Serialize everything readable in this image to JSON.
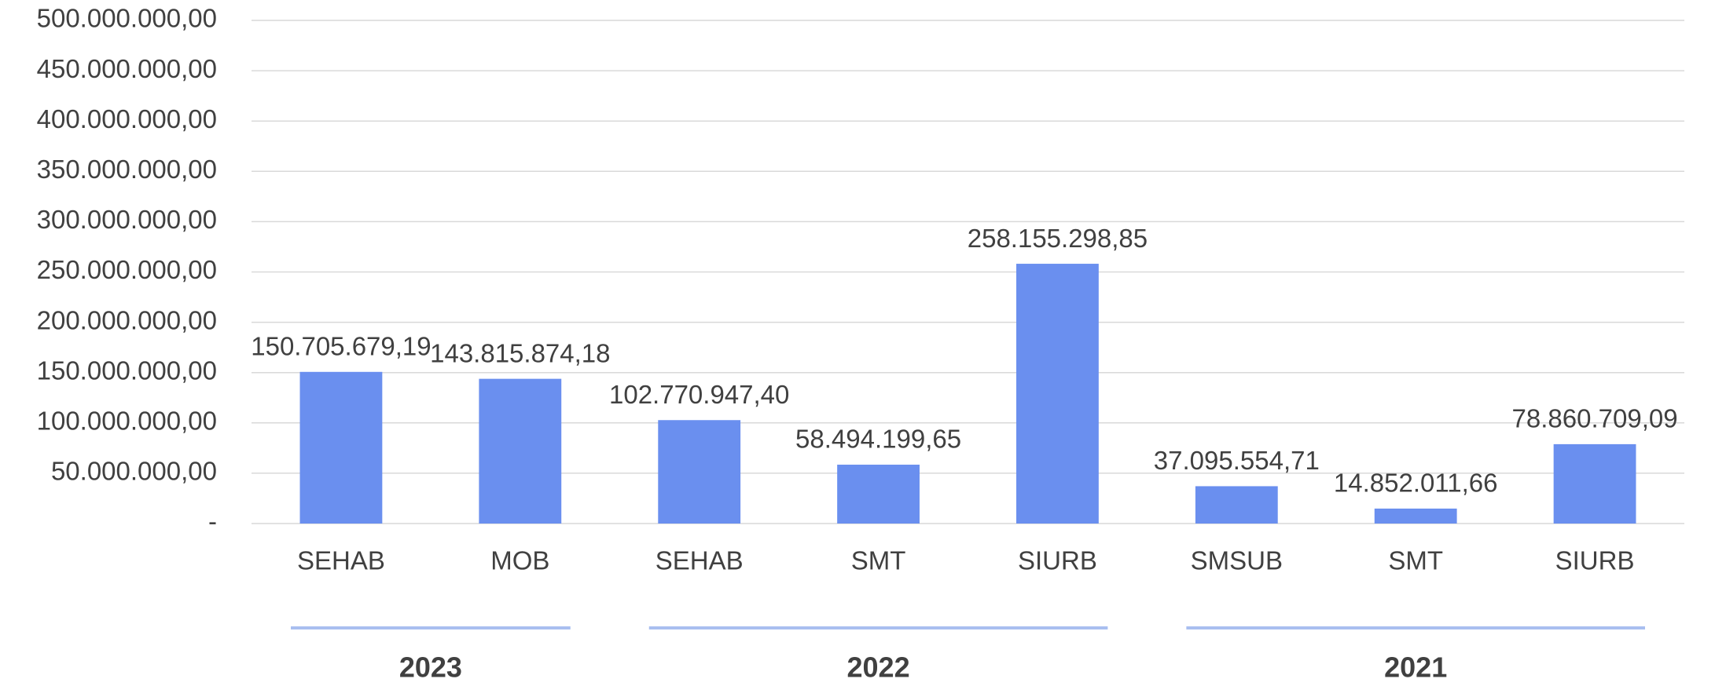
{
  "chart_data": {
    "type": "bar",
    "groups": [
      {
        "label": "2023",
        "categories": [
          "SEHAB",
          "MOB"
        ]
      },
      {
        "label": "2022",
        "categories": [
          "SEHAB",
          "SMT",
          "SIURB"
        ]
      },
      {
        "label": "2021",
        "categories": [
          "SMSUB",
          "SMT",
          "SIURB"
        ]
      }
    ],
    "values": [
      150705679.19,
      143815874.18,
      102770947.4,
      58494199.65,
      258155298.85,
      37095554.71,
      14852011.66,
      78860709.09
    ],
    "value_labels": [
      "150.705.679,19",
      "143.815.874,18",
      "102.770.947,40",
      "58.494.199,65",
      "258.155.298,85",
      "37.095.554,71",
      "14.852.011,66",
      "78.860.709,09"
    ],
    "color": "#6a8fef",
    "ylim": [
      0,
      500000000
    ],
    "yticks": [
      {
        "value": 0,
        "label": "-"
      },
      {
        "value": 50000000,
        "label": "50.000.000,00"
      },
      {
        "value": 100000000,
        "label": "100.000.000,00"
      },
      {
        "value": 150000000,
        "label": "150.000.000,00"
      },
      {
        "value": 200000000,
        "label": "200.000.000,00"
      },
      {
        "value": 250000000,
        "label": "250.000.000,00"
      },
      {
        "value": 300000000,
        "label": "300.000.000,00"
      },
      {
        "value": 350000000,
        "label": "350.000.000,00"
      },
      {
        "value": 400000000,
        "label": "400.000.000,00"
      },
      {
        "value": 450000000,
        "label": "450.000.000,00"
      },
      {
        "value": 500000000,
        "label": "500.000.000,00"
      }
    ],
    "grid": true
  }
}
